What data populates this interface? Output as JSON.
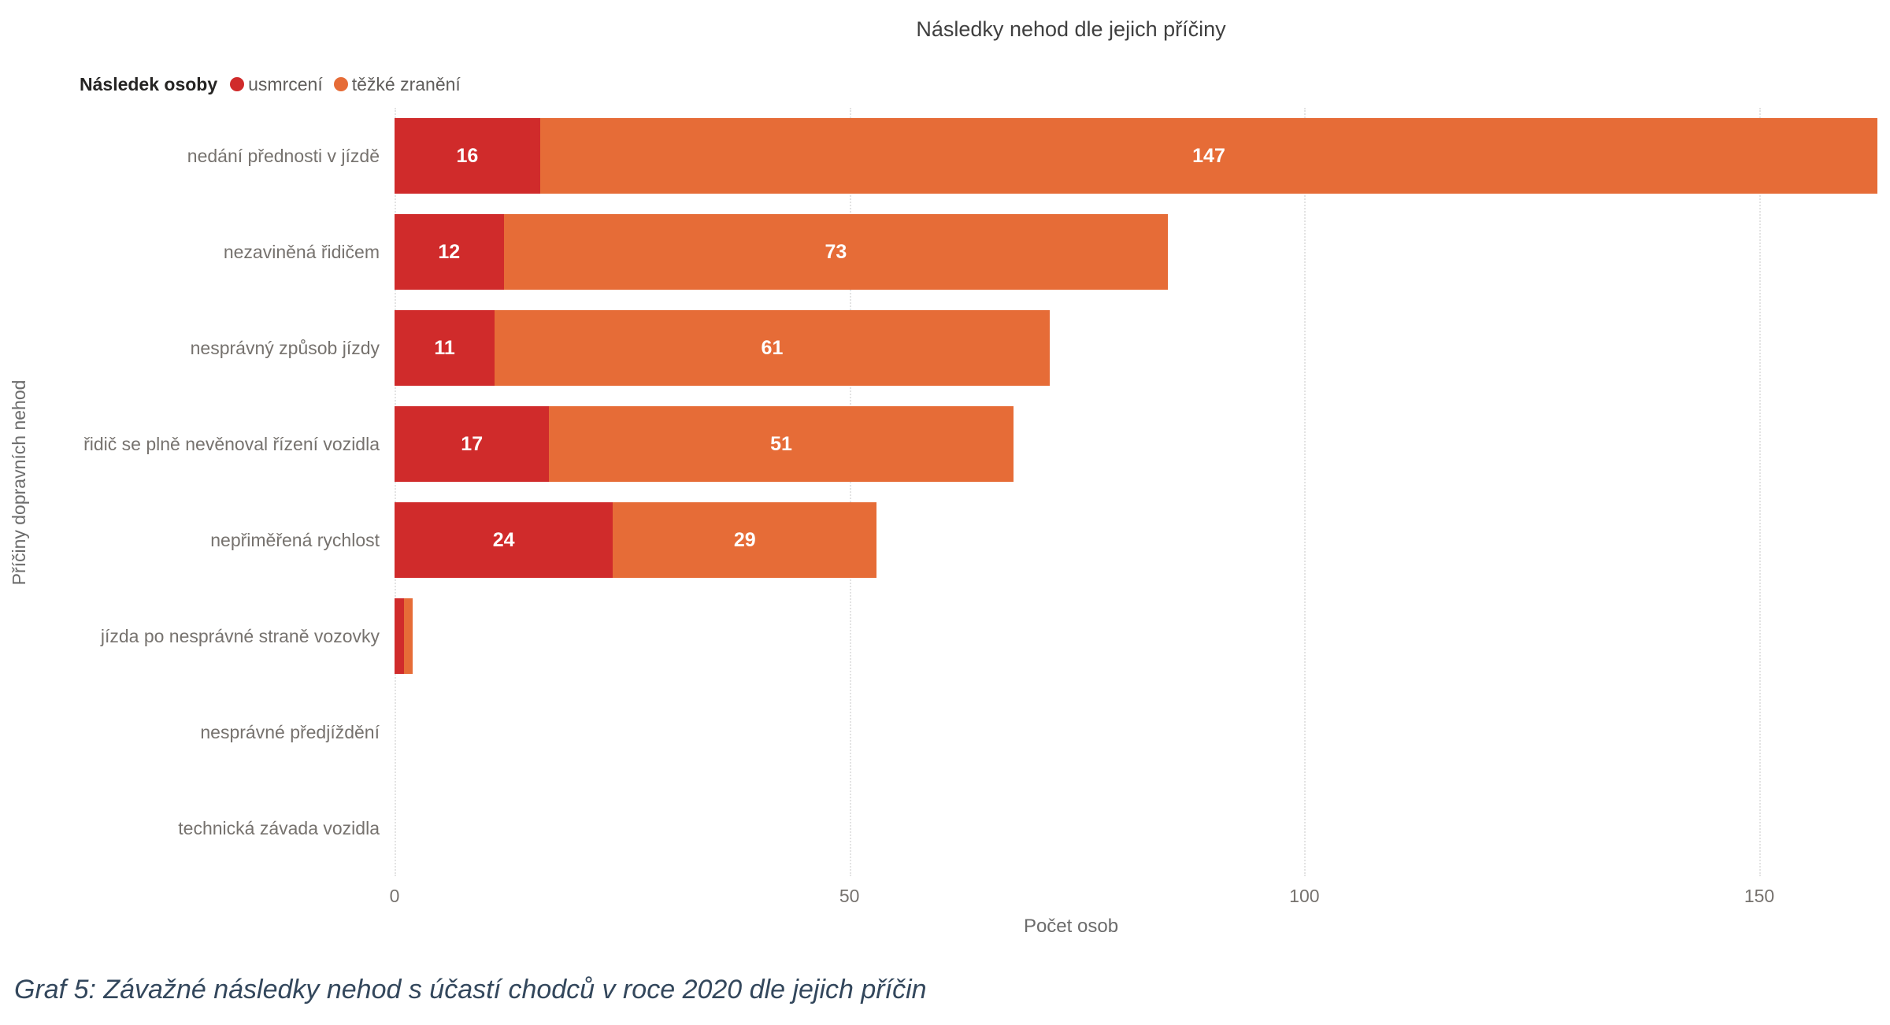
{
  "header": {
    "title": "Následky nehod dle jejich příčiny"
  },
  "legend": {
    "title": "Následek osoby"
  },
  "axes": {
    "x_title": "Počet osob",
    "y_title": "Příčiny dopravních nehod"
  },
  "caption": "Graf 5: Závažné následky nehod s účastí chodců v roce 2020 dle jejich příčin",
  "colors": {
    "series_fatal": "#D02B2B",
    "series_severe": "#E66C37",
    "gridline": "#E3E3E3",
    "data_label": "#FFFFFF",
    "caption_text": "#33475C"
  },
  "chart_data": {
    "type": "bar",
    "orientation": "horizontal",
    "stacked": true,
    "title": "Následky nehod dle jejich příčiny",
    "xlabel": "Počet osob",
    "ylabel": "Příčiny dopravních nehod",
    "legend_title": "Následek osoby",
    "legend_position": "top-left",
    "grid": "vertical-dotted",
    "xlim": [
      0,
      163.5
    ],
    "xticks": [
      0,
      50,
      100,
      150
    ],
    "categories": [
      "nedání přednosti v jízdě",
      "nezaviněná řidičem",
      "nesprávný způsob jízdy",
      "řidič se plně nevěnoval řízení vozidla",
      "nepřiměřená rychlost",
      "jízda po nesprávné straně vozovky",
      "nesprávné předjíždění",
      "technická závada vozidla"
    ],
    "series": [
      {
        "name": "usmrcení",
        "color": "#D02B2B",
        "values": [
          16,
          12,
          11,
          17,
          24,
          1,
          0,
          0
        ]
      },
      {
        "name": "těžké zranění",
        "color": "#E66C37",
        "values": [
          147,
          73,
          61,
          51,
          29,
          1,
          0,
          0
        ]
      }
    ]
  }
}
